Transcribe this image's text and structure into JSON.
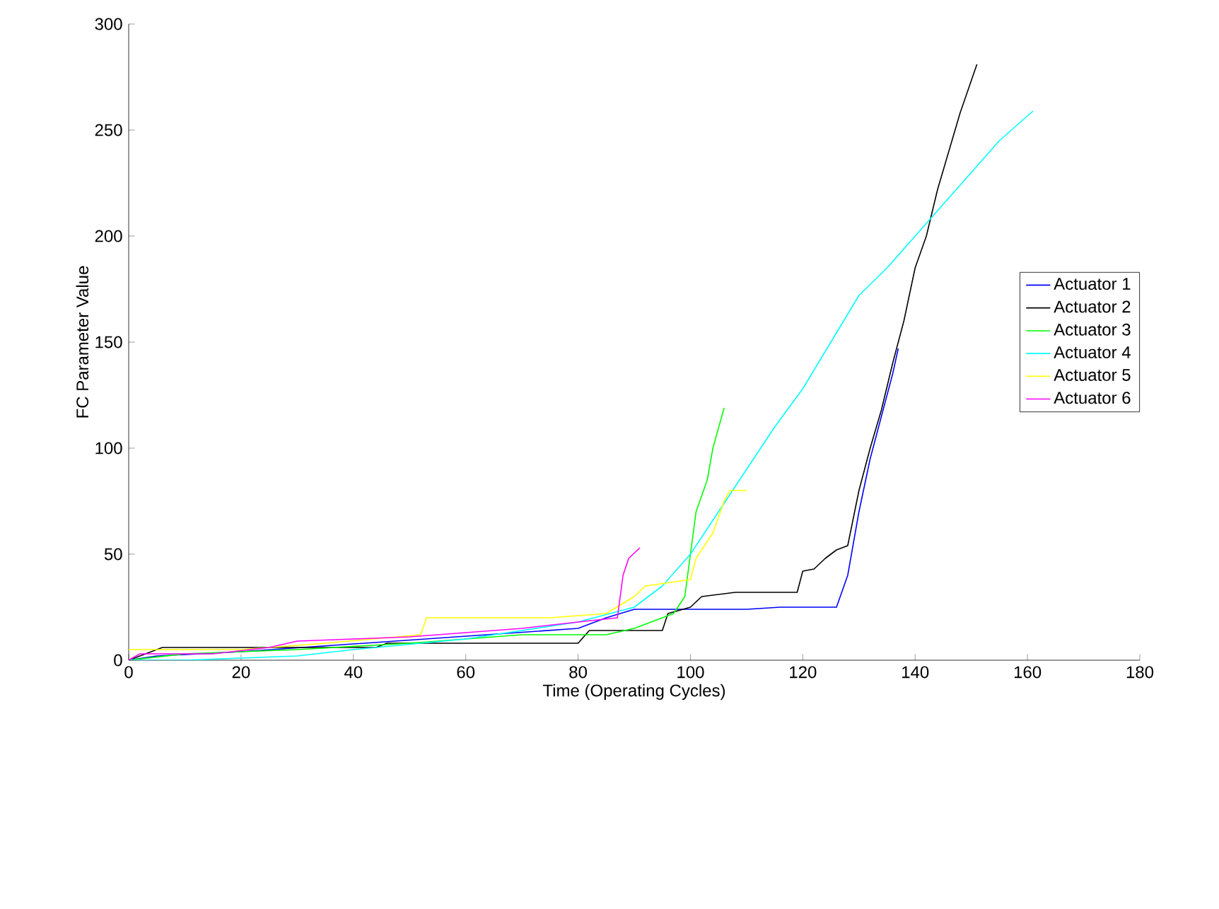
{
  "chart_data": {
    "type": "line",
    "xlabel": "Time (Operating Cycles)",
    "ylabel": "FC Parameter Value",
    "xlim": [
      0,
      180
    ],
    "ylim": [
      0,
      300
    ],
    "xticks": [
      0,
      20,
      40,
      60,
      80,
      100,
      120,
      140,
      160,
      180
    ],
    "yticks": [
      0,
      50,
      100,
      150,
      200,
      250,
      300
    ],
    "legend": "right",
    "grid": false,
    "marker": "none",
    "line_style": "solid",
    "series": [
      {
        "name": "Actuator 1",
        "color": "#0000ff",
        "x": [
          0,
          5,
          20,
          80,
          85,
          90,
          110,
          116,
          126,
          128,
          130,
          132,
          134,
          136,
          137
        ],
        "values": [
          0,
          2,
          4,
          15,
          20,
          24,
          24,
          25,
          25,
          40,
          70,
          95,
          115,
          135,
          147
        ]
      },
      {
        "name": "Actuator 2",
        "color": "#000000",
        "x": [
          0,
          6,
          44,
          46,
          62,
          80,
          82,
          95,
          96,
          100,
          102,
          108,
          119,
          120,
          122,
          124,
          126,
          128,
          130,
          132,
          134,
          136,
          138,
          140,
          142,
          144,
          146,
          148,
          151
        ],
        "values": [
          0,
          6,
          6,
          8,
          8,
          8,
          14,
          14,
          22,
          25,
          30,
          32,
          32,
          42,
          43,
          48,
          52,
          54,
          80,
          100,
          118,
          140,
          160,
          185,
          200,
          222,
          240,
          258,
          281
        ]
      },
      {
        "name": "Actuator 3",
        "color": "#00ff00",
        "x": [
          0,
          10,
          30,
          50,
          70,
          85,
          90,
          97,
          99,
          100,
          101,
          103,
          104,
          106
        ],
        "values": [
          0,
          3,
          5,
          8,
          12,
          12,
          15,
          22,
          30,
          50,
          70,
          85,
          100,
          119
        ]
      },
      {
        "name": "Actuator 4",
        "color": "#00ffff",
        "x": [
          0,
          10,
          30,
          40,
          60,
          80,
          90,
          95,
          100,
          105,
          110,
          115,
          120,
          125,
          130,
          135,
          140,
          145,
          150,
          155,
          161
        ],
        "values": [
          0,
          0,
          2,
          5,
          10,
          18,
          25,
          35,
          50,
          70,
          90,
          110,
          128,
          150,
          172,
          185,
          200,
          215,
          230,
          245,
          259
        ]
      },
      {
        "name": "Actuator 5",
        "color": "#ffff00",
        "x": [
          0,
          20,
          35,
          52,
          53,
          75,
          85,
          90,
          92,
          100,
          101,
          104,
          106,
          107,
          110
        ],
        "values": [
          5,
          5,
          8,
          12,
          20,
          20,
          22,
          30,
          35,
          38,
          48,
          60,
          75,
          80,
          80
        ]
      },
      {
        "name": "Actuator 6",
        "color": "#ff00ff",
        "x": [
          0,
          2,
          15,
          25,
          30,
          40,
          50,
          60,
          70,
          80,
          87,
          88,
          89,
          91
        ],
        "values": [
          0,
          3,
          3,
          6,
          9,
          10,
          11,
          13,
          15,
          18,
          20,
          40,
          48,
          53
        ]
      }
    ]
  }
}
